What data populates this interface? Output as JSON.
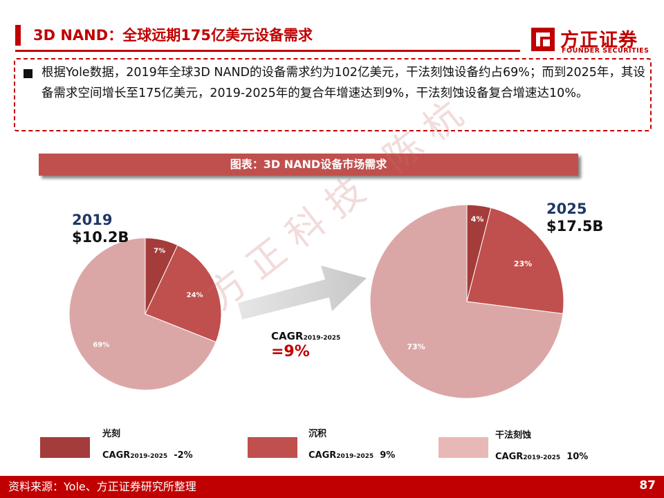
{
  "header": {
    "title": "3D NAND：全球远期175亿美元设备需求",
    "logo_cn": "方正证券",
    "logo_en": "FOUNDER SECURITIES"
  },
  "summary": {
    "text": "根据Yole数据，2019年全球3D NAND的设备需求约为102亿美元，干法刻蚀设备约占69%；而到2025年，其设备需求空间增长至175亿美元，2019-2025年的复合年增速达到9%，干法刻蚀设备复合增速达10%。"
  },
  "chart_banner": "图表：3D NAND设备市场需求",
  "chart_data": [
    {
      "type": "pie",
      "title": "2019",
      "subtitle": "$10.2B",
      "categories": [
        "光刻",
        "沉积",
        "干法刻蚀"
      ],
      "values": [
        7,
        24,
        69
      ],
      "labels": [
        "7%",
        "24%",
        "69%"
      ],
      "colors": [
        "#a33c3a",
        "#c0504d",
        "#dba7a6"
      ]
    },
    {
      "type": "pie",
      "title": "2025",
      "subtitle": "$17.5B",
      "categories": [
        "光刻",
        "沉积",
        "干法刻蚀"
      ],
      "values": [
        4,
        23,
        73
      ],
      "labels": [
        "4%",
        "23%",
        "73%"
      ],
      "colors": [
        "#a33c3a",
        "#c0504d",
        "#dba7a6"
      ]
    }
  ],
  "cagr_total": {
    "label": "CAGR",
    "period": "2019-2025",
    "value": "=9%"
  },
  "legend": [
    {
      "name": "光刻",
      "cagr_label": "CAGR",
      "period": "2019-2025",
      "value": "-2%",
      "color": "#a33c3a"
    },
    {
      "name": "沉积",
      "cagr_label": "CAGR",
      "period": "2019-2025",
      "value": "9%",
      "color": "#c0504d"
    },
    {
      "name": "干法刻蚀",
      "cagr_label": "CAGR",
      "period": "2019-2025",
      "value": "10%",
      "color": "#e8b8b7"
    }
  ],
  "watermark": "方正科技 陈杭",
  "footer": {
    "source": "资料来源：Yole、方正证券研究所整理",
    "page": "87"
  }
}
